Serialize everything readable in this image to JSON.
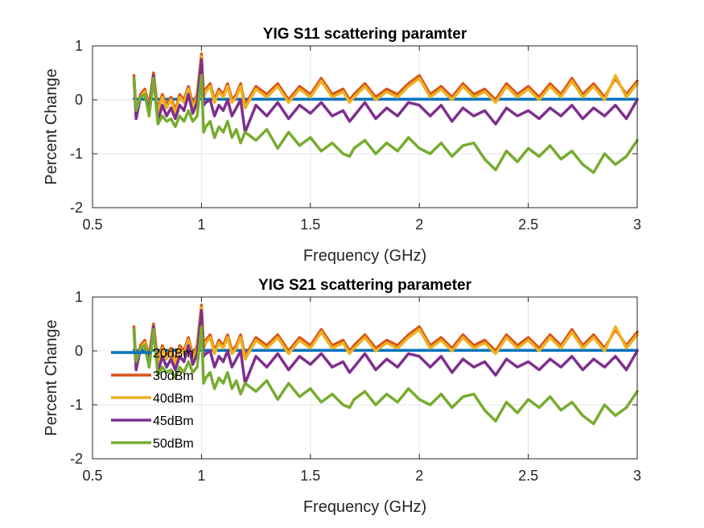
{
  "chart_data": [
    {
      "type": "line",
      "title": "YIG S11 scattering paramter",
      "xlabel": "Frequency (GHz)",
      "ylabel": "Percent Change",
      "xlim": [
        0.5,
        3
      ],
      "ylim": [
        -2,
        1
      ],
      "xticks": [
        "0.5",
        "1",
        "1.5",
        "2",
        "2.5",
        "3"
      ],
      "yticks": [
        "-2",
        "-1",
        "0",
        "1"
      ],
      "grid": true,
      "legend": false,
      "x": [
        0.69,
        0.7,
        0.72,
        0.74,
        0.76,
        0.78,
        0.8,
        0.82,
        0.84,
        0.86,
        0.88,
        0.9,
        0.92,
        0.94,
        0.96,
        0.98,
        1.0,
        1.01,
        1.02,
        1.04,
        1.06,
        1.08,
        1.1,
        1.12,
        1.14,
        1.16,
        1.18,
        1.2,
        1.25,
        1.3,
        1.35,
        1.4,
        1.45,
        1.5,
        1.55,
        1.6,
        1.65,
        1.68,
        1.7,
        1.75,
        1.8,
        1.85,
        1.9,
        1.95,
        2.0,
        2.05,
        2.1,
        2.15,
        2.2,
        2.25,
        2.3,
        2.35,
        2.4,
        2.45,
        2.5,
        2.55,
        2.6,
        2.65,
        2.7,
        2.75,
        2.8,
        2.85,
        2.9,
        2.95,
        3.0
      ],
      "series": [
        {
          "name": "20dBm",
          "color": "#0072BD",
          "values": [
            0.02,
            0.01,
            0.01,
            0.01,
            0.01,
            0.01,
            0.01,
            0.01,
            0.01,
            0.01,
            0.01,
            0.01,
            0.01,
            0.01,
            0.01,
            0.01,
            0.01,
            0.01,
            0.01,
            0.01,
            0.01,
            0.01,
            0.01,
            0.01,
            0.01,
            0.01,
            0.01,
            0.01,
            0.01,
            0.01,
            0.01,
            0.01,
            0.01,
            0.01,
            0.01,
            0.01,
            0.01,
            0.01,
            0.01,
            0.01,
            0.01,
            0.01,
            0.01,
            0.01,
            0.01,
            0.01,
            0.01,
            0.01,
            0.01,
            0.01,
            0.01,
            0.01,
            0.01,
            0.01,
            0.01,
            0.01,
            0.01,
            0.01,
            0.01,
            0.01,
            0.01,
            0.01,
            0.01,
            0.01,
            0.01
          ]
        },
        {
          "name": "30dBm",
          "color": "#D95319",
          "values": [
            0.45,
            -0.25,
            0.1,
            0.2,
            -0.1,
            0.5,
            -0.2,
            0.1,
            -0.1,
            0.05,
            -0.2,
            0.1,
            0.0,
            0.25,
            -0.1,
            0.1,
            0.85,
            0.1,
            0.2,
            0.3,
            0.0,
            0.2,
            0.1,
            0.3,
            0.0,
            0.1,
            0.3,
            -0.1,
            0.25,
            0.1,
            0.3,
            0.0,
            0.25,
            0.1,
            0.4,
            0.1,
            0.2,
            0.0,
            0.1,
            0.3,
            0.05,
            0.2,
            0.1,
            0.3,
            0.45,
            0.1,
            0.25,
            0.05,
            0.3,
            0.1,
            0.2,
            0.0,
            0.3,
            0.1,
            0.25,
            0.05,
            0.3,
            0.1,
            0.4,
            0.1,
            0.3,
            0.05,
            0.4,
            0.1,
            0.35
          ]
        },
        {
          "name": "40dBm",
          "color": "#EDB120",
          "values": [
            0.4,
            -0.3,
            0.05,
            0.15,
            -0.15,
            0.45,
            -0.25,
            0.05,
            -0.15,
            0.0,
            -0.25,
            0.05,
            -0.05,
            0.2,
            -0.15,
            0.05,
            0.8,
            0.05,
            0.15,
            0.25,
            -0.05,
            0.15,
            0.05,
            0.25,
            -0.05,
            0.05,
            0.25,
            -0.15,
            0.2,
            0.05,
            0.25,
            -0.05,
            0.2,
            0.05,
            0.35,
            0.05,
            0.15,
            -0.05,
            0.05,
            0.25,
            0.0,
            0.15,
            0.05,
            0.25,
            0.4,
            0.05,
            0.2,
            0.0,
            0.25,
            0.05,
            0.15,
            -0.05,
            0.25,
            0.05,
            0.2,
            0.0,
            0.25,
            0.05,
            0.35,
            0.05,
            0.25,
            0.0,
            0.45,
            0.05,
            0.3
          ]
        },
        {
          "name": "45dBm",
          "color": "#7E2F8E",
          "values": [
            0.4,
            -0.35,
            0.05,
            0.1,
            -0.2,
            0.45,
            -0.4,
            -0.1,
            -0.3,
            -0.15,
            -0.35,
            -0.1,
            -0.2,
            0.1,
            -0.25,
            -0.05,
            0.75,
            -0.1,
            -0.05,
            0.0,
            -0.3,
            -0.1,
            -0.2,
            0.0,
            -0.3,
            -0.15,
            0.0,
            -0.6,
            -0.1,
            -0.3,
            -0.05,
            -0.35,
            -0.1,
            -0.25,
            -0.05,
            -0.3,
            -0.2,
            -0.4,
            -0.3,
            -0.05,
            -0.35,
            -0.15,
            -0.3,
            -0.05,
            -0.1,
            -0.3,
            -0.1,
            -0.4,
            -0.15,
            -0.3,
            -0.2,
            -0.45,
            -0.15,
            -0.3,
            -0.2,
            -0.35,
            -0.15,
            -0.3,
            -0.1,
            -0.35,
            -0.15,
            -0.3,
            -0.1,
            -0.35,
            0.0
          ]
        },
        {
          "name": "50dBm",
          "color": "#77AC30",
          "values": [
            0.4,
            -0.2,
            0.05,
            0.1,
            -0.3,
            0.4,
            -0.45,
            -0.3,
            -0.4,
            -0.35,
            -0.5,
            -0.3,
            -0.4,
            -0.2,
            -0.4,
            -0.3,
            0.45,
            -0.6,
            -0.5,
            -0.4,
            -0.7,
            -0.5,
            -0.6,
            -0.4,
            -0.7,
            -0.55,
            -0.8,
            -0.6,
            -0.75,
            -0.55,
            -0.9,
            -0.6,
            -0.85,
            -0.7,
            -0.95,
            -0.8,
            -1.0,
            -1.05,
            -0.9,
            -0.75,
            -1.0,
            -0.8,
            -0.95,
            -0.7,
            -0.9,
            -1.0,
            -0.8,
            -1.05,
            -0.85,
            -0.8,
            -1.1,
            -1.3,
            -0.95,
            -1.15,
            -0.9,
            -1.05,
            -0.85,
            -1.1,
            -0.95,
            -1.2,
            -1.35,
            -1.0,
            -1.2,
            -1.05,
            -0.75
          ]
        }
      ]
    },
    {
      "type": "line",
      "title": "YIG S21 scattering parameter",
      "xlabel": "Frequency (GHz)",
      "ylabel": "Percent Change",
      "xlim": [
        0.5,
        3
      ],
      "ylim": [
        -2,
        1
      ],
      "xticks": [
        "0.5",
        "1",
        "1.5",
        "2",
        "2.5",
        "3"
      ],
      "yticks": [
        "-2",
        "-1",
        "0",
        "1"
      ],
      "grid": true,
      "legend": "left",
      "x": [
        0.69,
        0.7,
        0.72,
        0.74,
        0.76,
        0.78,
        0.8,
        0.82,
        0.84,
        0.86,
        0.88,
        0.9,
        0.92,
        0.94,
        0.96,
        0.98,
        1.0,
        1.01,
        1.02,
        1.04,
        1.06,
        1.08,
        1.1,
        1.12,
        1.14,
        1.16,
        1.18,
        1.2,
        1.25,
        1.3,
        1.35,
        1.4,
        1.45,
        1.5,
        1.55,
        1.6,
        1.65,
        1.68,
        1.7,
        1.75,
        1.8,
        1.85,
        1.9,
        1.95,
        2.0,
        2.05,
        2.1,
        2.15,
        2.2,
        2.25,
        2.3,
        2.35,
        2.4,
        2.45,
        2.5,
        2.55,
        2.6,
        2.65,
        2.7,
        2.75,
        2.8,
        2.85,
        2.9,
        2.95,
        3.0
      ],
      "series": [
        {
          "name": "20dBm",
          "color": "#0072BD",
          "values": [
            0.02,
            0.01,
            0.01,
            0.01,
            0.01,
            0.01,
            0.01,
            0.01,
            0.01,
            0.01,
            0.01,
            0.01,
            0.01,
            0.01,
            0.01,
            0.01,
            0.01,
            0.01,
            0.01,
            0.01,
            0.01,
            0.01,
            0.01,
            0.01,
            0.01,
            0.01,
            0.01,
            0.01,
            0.01,
            0.01,
            0.01,
            0.01,
            0.01,
            0.01,
            0.01,
            0.01,
            0.01,
            0.01,
            0.01,
            0.01,
            0.01,
            0.01,
            0.01,
            0.01,
            0.01,
            0.01,
            0.01,
            0.01,
            0.01,
            0.01,
            0.01,
            0.01,
            0.01,
            0.01,
            0.01,
            0.01,
            0.01,
            0.01,
            0.01,
            0.01,
            0.01,
            0.01,
            0.01,
            0.01,
            0.01
          ]
        },
        {
          "name": "30dBm",
          "color": "#D95319",
          "values": [
            0.45,
            -0.25,
            0.1,
            0.2,
            -0.1,
            0.5,
            -0.2,
            0.1,
            -0.1,
            0.05,
            -0.2,
            0.1,
            0.0,
            0.25,
            -0.1,
            0.1,
            0.85,
            0.1,
            0.2,
            0.3,
            0.0,
            0.2,
            0.1,
            0.3,
            0.0,
            0.1,
            0.3,
            -0.1,
            0.25,
            0.1,
            0.3,
            0.0,
            0.25,
            0.1,
            0.4,
            0.1,
            0.2,
            0.0,
            0.1,
            0.3,
            0.05,
            0.2,
            0.1,
            0.3,
            0.45,
            0.1,
            0.25,
            0.05,
            0.3,
            0.1,
            0.2,
            0.0,
            0.3,
            0.1,
            0.25,
            0.05,
            0.3,
            0.1,
            0.4,
            0.1,
            0.3,
            0.05,
            0.4,
            0.1,
            0.35
          ]
        },
        {
          "name": "40dBm",
          "color": "#EDB120",
          "values": [
            0.4,
            -0.3,
            0.05,
            0.15,
            -0.15,
            0.45,
            -0.25,
            0.05,
            -0.15,
            0.0,
            -0.25,
            0.05,
            -0.05,
            0.2,
            -0.15,
            0.05,
            0.8,
            0.05,
            0.15,
            0.25,
            -0.05,
            0.15,
            0.05,
            0.25,
            -0.05,
            0.05,
            0.25,
            -0.15,
            0.2,
            0.05,
            0.25,
            -0.05,
            0.2,
            0.05,
            0.35,
            0.05,
            0.15,
            -0.05,
            0.05,
            0.25,
            0.0,
            0.15,
            0.05,
            0.25,
            0.4,
            0.05,
            0.2,
            0.0,
            0.25,
            0.05,
            0.15,
            -0.05,
            0.25,
            0.05,
            0.2,
            0.0,
            0.25,
            0.05,
            0.35,
            0.05,
            0.25,
            0.0,
            0.45,
            0.05,
            0.3
          ]
        },
        {
          "name": "45dBm",
          "color": "#7E2F8E",
          "values": [
            0.4,
            -0.35,
            0.05,
            0.1,
            -0.2,
            0.45,
            -0.4,
            -0.1,
            -0.3,
            -0.15,
            -0.35,
            -0.1,
            -0.2,
            0.1,
            -0.25,
            -0.05,
            0.75,
            -0.1,
            -0.05,
            0.0,
            -0.3,
            -0.1,
            -0.2,
            0.0,
            -0.3,
            -0.15,
            0.0,
            -0.6,
            -0.1,
            -0.3,
            -0.05,
            -0.35,
            -0.1,
            -0.25,
            -0.05,
            -0.3,
            -0.2,
            -0.4,
            -0.3,
            -0.05,
            -0.35,
            -0.15,
            -0.3,
            -0.05,
            -0.1,
            -0.3,
            -0.1,
            -0.4,
            -0.15,
            -0.3,
            -0.2,
            -0.45,
            -0.15,
            -0.3,
            -0.2,
            -0.35,
            -0.15,
            -0.3,
            -0.1,
            -0.35,
            -0.15,
            -0.3,
            -0.1,
            -0.35,
            0.0
          ]
        },
        {
          "name": "50dBm",
          "color": "#77AC30",
          "values": [
            0.4,
            -0.2,
            0.05,
            0.1,
            -0.3,
            0.4,
            -0.45,
            -0.3,
            -0.4,
            -0.35,
            -0.5,
            -0.3,
            -0.4,
            -0.2,
            -0.4,
            -0.3,
            0.45,
            -0.6,
            -0.5,
            -0.4,
            -0.7,
            -0.5,
            -0.6,
            -0.4,
            -0.7,
            -0.55,
            -0.8,
            -0.6,
            -0.75,
            -0.55,
            -0.9,
            -0.6,
            -0.85,
            -0.7,
            -0.95,
            -0.8,
            -1.0,
            -1.05,
            -0.9,
            -0.75,
            -1.0,
            -0.8,
            -0.95,
            -0.7,
            -0.9,
            -1.0,
            -0.8,
            -1.05,
            -0.85,
            -0.8,
            -1.1,
            -1.3,
            -0.95,
            -1.15,
            -0.9,
            -1.05,
            -0.85,
            -1.1,
            -0.95,
            -1.2,
            -1.35,
            -1.0,
            -1.2,
            -1.05,
            -0.75
          ]
        }
      ]
    }
  ]
}
